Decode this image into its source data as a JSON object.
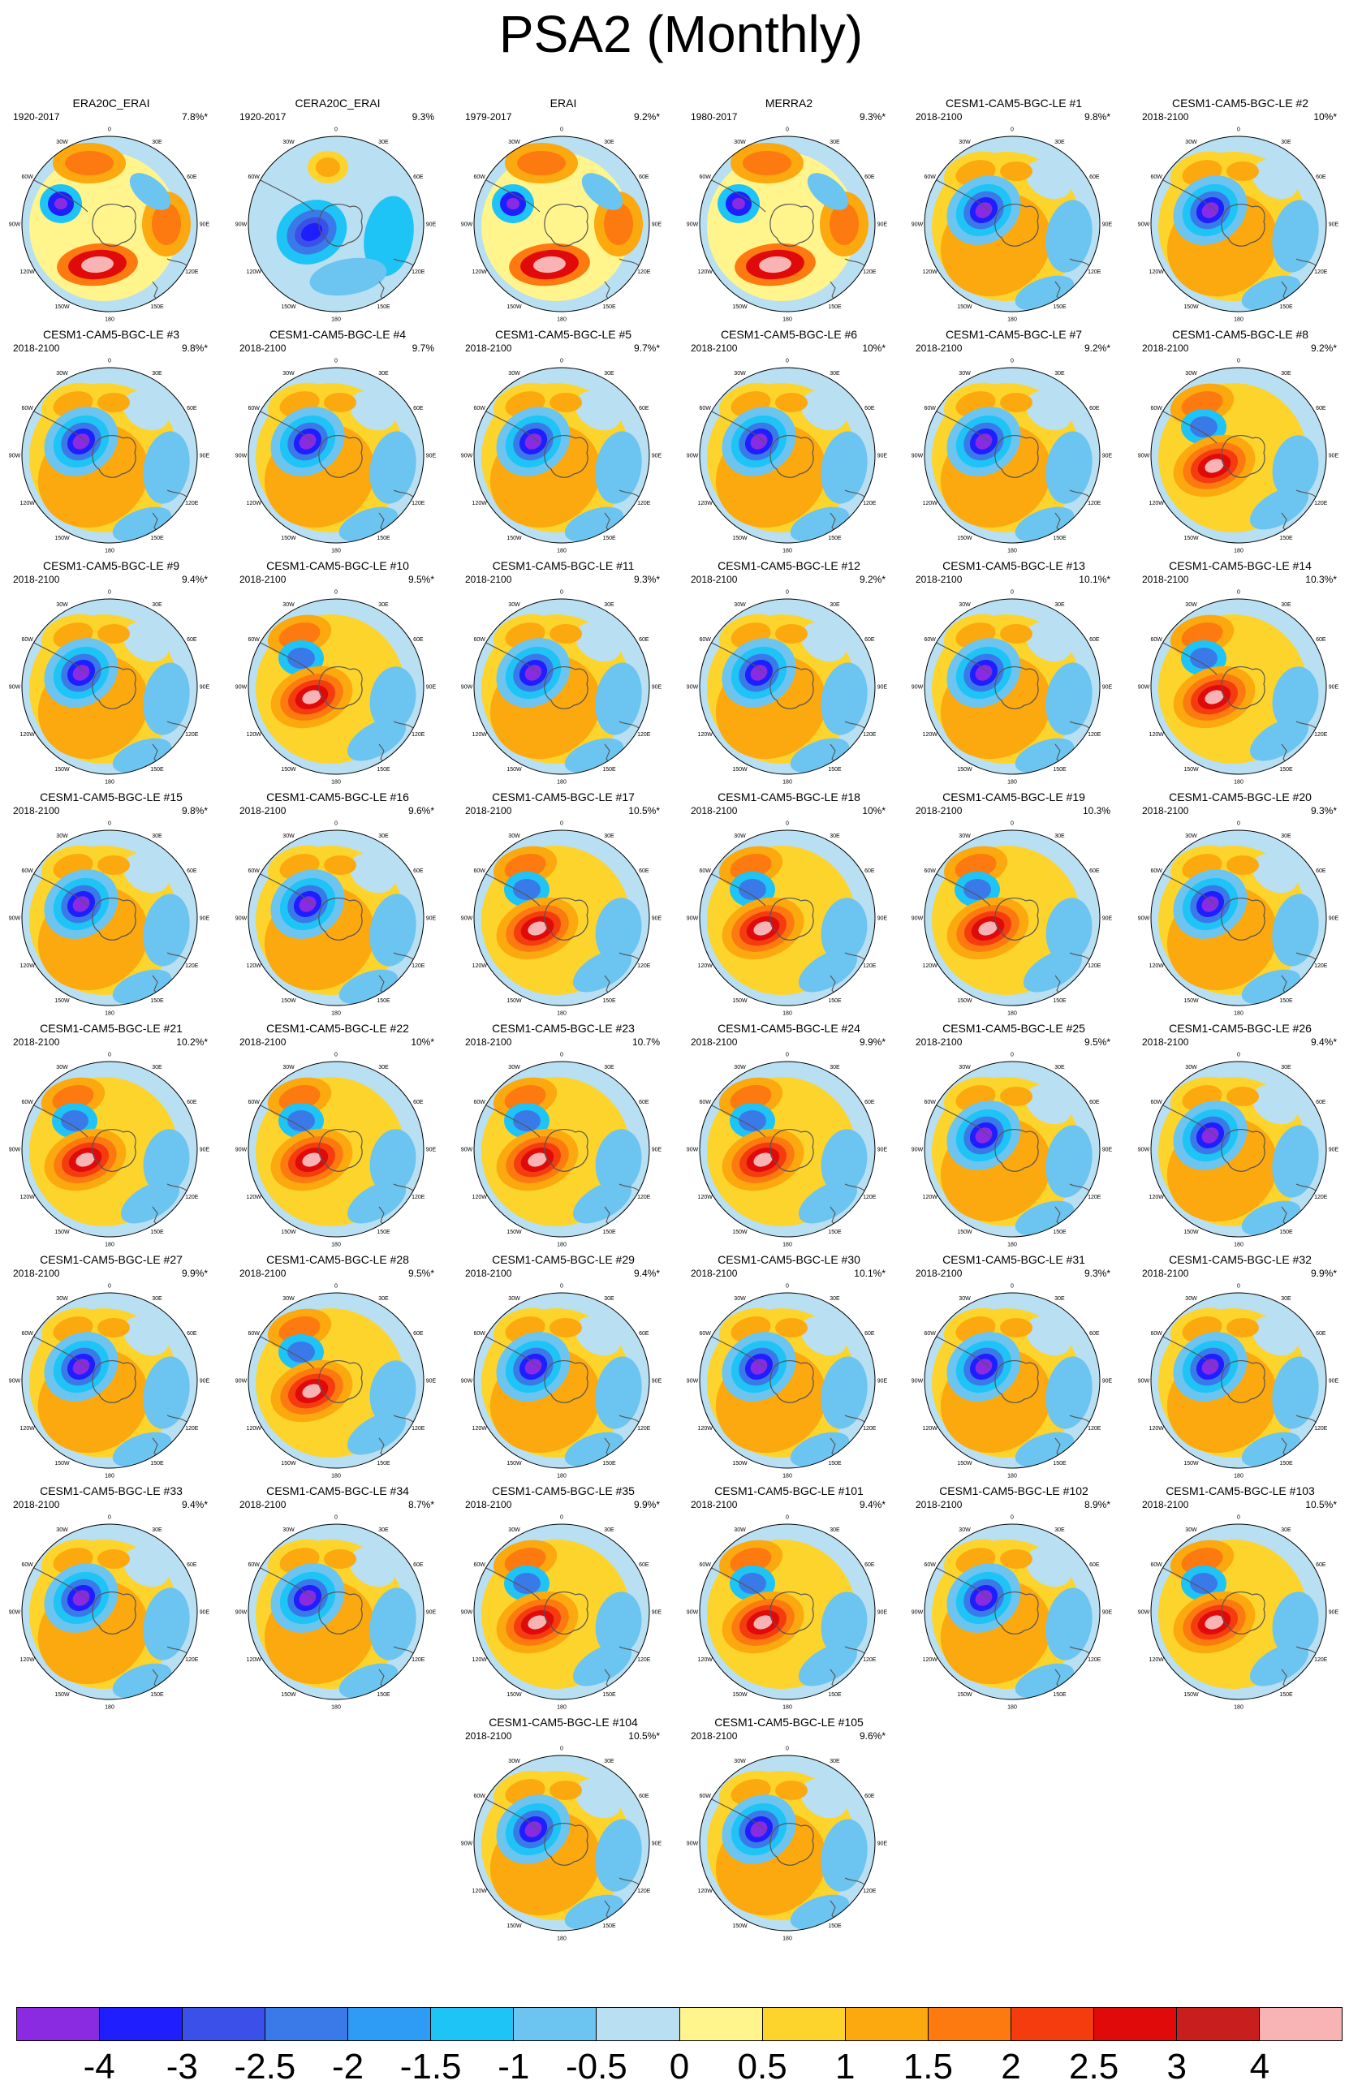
{
  "title": "PSA2 (Monthly)",
  "map_labels": {
    "lon": [
      "0",
      "30E",
      "60E",
      "90E",
      "120E",
      "150E",
      "180",
      "150W",
      "120W",
      "90W",
      "60W",
      "30W"
    ]
  },
  "panels": [
    {
      "title": "ERA20C_ERAI",
      "period": "1920-2017",
      "var": "7.8%*",
      "pattern": "obsA"
    },
    {
      "title": "CERA20C_ERAI",
      "period": "1920-2017",
      "var": "9.3%",
      "pattern": "obsB"
    },
    {
      "title": "ERAI",
      "period": "1979-2017",
      "var": "9.2%*",
      "pattern": "obsA"
    },
    {
      "title": "MERRA2",
      "period": "1980-2017",
      "var": "9.3%*",
      "pattern": "obsA"
    },
    {
      "title": "CESM1-CAM5-BGC-LE #1",
      "period": "2018-2100",
      "var": "9.8%*",
      "pattern": "A"
    },
    {
      "title": "CESM1-CAM5-BGC-LE #2",
      "period": "2018-2100",
      "var": "10%*",
      "pattern": "A"
    },
    {
      "title": "CESM1-CAM5-BGC-LE #3",
      "period": "2018-2100",
      "var": "9.8%*",
      "pattern": "A"
    },
    {
      "title": "CESM1-CAM5-BGC-LE #4",
      "period": "2018-2100",
      "var": "9.7%",
      "pattern": "A"
    },
    {
      "title": "CESM1-CAM5-BGC-LE #5",
      "period": "2018-2100",
      "var": "9.7%*",
      "pattern": "A"
    },
    {
      "title": "CESM1-CAM5-BGC-LE #6",
      "period": "2018-2100",
      "var": "10%*",
      "pattern": "A"
    },
    {
      "title": "CESM1-CAM5-BGC-LE #7",
      "period": "2018-2100",
      "var": "9.2%*",
      "pattern": "A"
    },
    {
      "title": "CESM1-CAM5-BGC-LE #8",
      "period": "2018-2100",
      "var": "9.2%*",
      "pattern": "B"
    },
    {
      "title": "CESM1-CAM5-BGC-LE #9",
      "period": "2018-2100",
      "var": "9.4%*",
      "pattern": "A"
    },
    {
      "title": "CESM1-CAM5-BGC-LE #10",
      "period": "2018-2100",
      "var": "9.5%*",
      "pattern": "B"
    },
    {
      "title": "CESM1-CAM5-BGC-LE #11",
      "period": "2018-2100",
      "var": "9.3%*",
      "pattern": "A"
    },
    {
      "title": "CESM1-CAM5-BGC-LE #12",
      "period": "2018-2100",
      "var": "9.2%*",
      "pattern": "A"
    },
    {
      "title": "CESM1-CAM5-BGC-LE #13",
      "period": "2018-2100",
      "var": "10.1%*",
      "pattern": "A"
    },
    {
      "title": "CESM1-CAM5-BGC-LE #14",
      "period": "2018-2100",
      "var": "10.3%*",
      "pattern": "B"
    },
    {
      "title": "CESM1-CAM5-BGC-LE #15",
      "period": "2018-2100",
      "var": "9.8%*",
      "pattern": "A"
    },
    {
      "title": "CESM1-CAM5-BGC-LE #16",
      "period": "2018-2100",
      "var": "9.6%*",
      "pattern": "A"
    },
    {
      "title": "CESM1-CAM5-BGC-LE #17",
      "period": "2018-2100",
      "var": "10.5%*",
      "pattern": "B"
    },
    {
      "title": "CESM1-CAM5-BGC-LE #18",
      "period": "2018-2100",
      "var": "10%*",
      "pattern": "B"
    },
    {
      "title": "CESM1-CAM5-BGC-LE #19",
      "period": "2018-2100",
      "var": "10.3%",
      "pattern": "B"
    },
    {
      "title": "CESM1-CAM5-BGC-LE #20",
      "period": "2018-2100",
      "var": "9.3%*",
      "pattern": "A"
    },
    {
      "title": "CESM1-CAM5-BGC-LE #21",
      "period": "2018-2100",
      "var": "10.2%*",
      "pattern": "B"
    },
    {
      "title": "CESM1-CAM5-BGC-LE #22",
      "period": "2018-2100",
      "var": "10%*",
      "pattern": "B"
    },
    {
      "title": "CESM1-CAM5-BGC-LE #23",
      "period": "2018-2100",
      "var": "10.7%",
      "pattern": "B"
    },
    {
      "title": "CESM1-CAM5-BGC-LE #24",
      "period": "2018-2100",
      "var": "9.9%*",
      "pattern": "B"
    },
    {
      "title": "CESM1-CAM5-BGC-LE #25",
      "period": "2018-2100",
      "var": "9.5%*",
      "pattern": "A"
    },
    {
      "title": "CESM1-CAM5-BGC-LE #26",
      "period": "2018-2100",
      "var": "9.4%*",
      "pattern": "A"
    },
    {
      "title": "CESM1-CAM5-BGC-LE #27",
      "period": "2018-2100",
      "var": "9.9%*",
      "pattern": "A"
    },
    {
      "title": "CESM1-CAM5-BGC-LE #28",
      "period": "2018-2100",
      "var": "9.5%*",
      "pattern": "B"
    },
    {
      "title": "CESM1-CAM5-BGC-LE #29",
      "period": "2018-2100",
      "var": "9.4%*",
      "pattern": "A"
    },
    {
      "title": "CESM1-CAM5-BGC-LE #30",
      "period": "2018-2100",
      "var": "10.1%*",
      "pattern": "A"
    },
    {
      "title": "CESM1-CAM5-BGC-LE #31",
      "period": "2018-2100",
      "var": "9.3%*",
      "pattern": "A"
    },
    {
      "title": "CESM1-CAM5-BGC-LE #32",
      "period": "2018-2100",
      "var": "9.9%*",
      "pattern": "A"
    },
    {
      "title": "CESM1-CAM5-BGC-LE #33",
      "period": "2018-2100",
      "var": "9.4%*",
      "pattern": "A"
    },
    {
      "title": "CESM1-CAM5-BGC-LE #34",
      "period": "2018-2100",
      "var": "8.7%*",
      "pattern": "A"
    },
    {
      "title": "CESM1-CAM5-BGC-LE #35",
      "period": "2018-2100",
      "var": "9.9%*",
      "pattern": "B"
    },
    {
      "title": "CESM1-CAM5-BGC-LE #101",
      "period": "2018-2100",
      "var": "9.4%*",
      "pattern": "B"
    },
    {
      "title": "CESM1-CAM5-BGC-LE #102",
      "period": "2018-2100",
      "var": "8.9%*",
      "pattern": "A"
    },
    {
      "title": "CESM1-CAM5-BGC-LE #103",
      "period": "2018-2100",
      "var": "10.5%*",
      "pattern": "B"
    },
    {
      "title": "CESM1-CAM5-BGC-LE #104",
      "period": "2018-2100",
      "var": "10.5%*",
      "pattern": "A"
    },
    {
      "title": "CESM1-CAM5-BGC-LE #105",
      "period": "2018-2100",
      "var": "9.6%*",
      "pattern": "A"
    }
  ],
  "colorbar": {
    "colors": [
      "#8a2be2",
      "#1e1eff",
      "#3a50e8",
      "#3a7ae8",
      "#2e9bf5",
      "#1ec4f5",
      "#6cc4f0",
      "#b8dff2",
      "#fff58c",
      "#fdd42c",
      "#fca80f",
      "#fc7a0f",
      "#f53c0f",
      "#e00a0a",
      "#c81e1e",
      "#f8b4b4"
    ],
    "labels": [
      "-4",
      "-3",
      "-2.5",
      "-2",
      "-1.5",
      "-1",
      "-0.5",
      "0",
      "0.5",
      "1",
      "1.5",
      "2",
      "2.5",
      "3",
      "4"
    ]
  }
}
